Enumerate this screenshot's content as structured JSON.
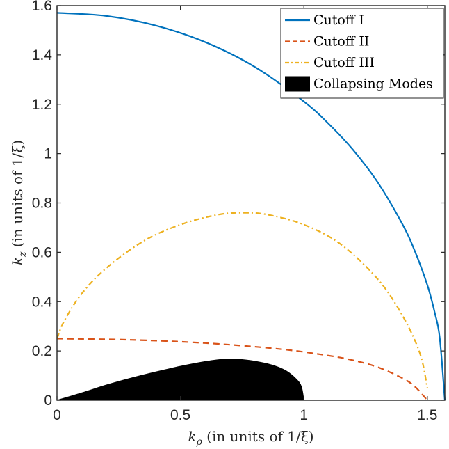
{
  "chart_data": {
    "type": "line",
    "xlabel_main": "k",
    "xlabel_sub": "ρ",
    "xlabel_rest": " (in units of 1/ξ)",
    "ylabel_main": "k",
    "ylabel_sub": "z",
    "ylabel_rest": " (in units of 1/ξ)",
    "xlim": [
      0,
      1.5708
    ],
    "ylim": [
      0,
      1.6
    ],
    "x_ticks": [
      {
        "value": 0,
        "label": "0"
      },
      {
        "value": 0.5,
        "label": "0.5"
      },
      {
        "value": 1,
        "label": "1"
      },
      {
        "value": 1.5,
        "label": "1.5"
      }
    ],
    "y_ticks": [
      {
        "value": 0,
        "label": "0"
      },
      {
        "value": 0.2,
        "label": "0.2"
      },
      {
        "value": 0.4,
        "label": "0.4"
      },
      {
        "value": 0.6,
        "label": "0.6"
      },
      {
        "value": 0.8,
        "label": "0.8"
      },
      {
        "value": 1,
        "label": "1"
      },
      {
        "value": 1.2,
        "label": "1.2"
      },
      {
        "value": 1.4,
        "label": "1.4"
      },
      {
        "value": 1.6,
        "label": "1.6"
      }
    ],
    "legend_position": "top-right",
    "series": [
      {
        "name": "Cutoff I",
        "style": "solid",
        "color": "#0072BD",
        "x": [
          0,
          0.2,
          0.4,
          0.6,
          0.8,
          1.0,
          1.1,
          1.2,
          1.3,
          1.4,
          1.45,
          1.5,
          1.53,
          1.55,
          1.5708
        ],
        "y": [
          1.5708,
          1.558,
          1.519,
          1.452,
          1.352,
          1.211,
          1.121,
          1.014,
          0.882,
          0.712,
          0.603,
          0.467,
          0.355,
          0.254,
          0
        ]
      },
      {
        "name": "Cutoff II",
        "style": "dashed",
        "color": "#D95319",
        "x": [
          0,
          0.3,
          0.6,
          0.9,
          1.1,
          1.2,
          1.3,
          1.4,
          1.45,
          1.5
        ],
        "y": [
          0.25,
          0.245,
          0.232,
          0.208,
          0.181,
          0.162,
          0.134,
          0.089,
          0.055,
          0
        ]
      },
      {
        "name": "Cutoff III",
        "style": "dashdot",
        "color": "#EDB120",
        "x": [
          0,
          0.03,
          0.1,
          0.2,
          0.35,
          0.5,
          0.65,
          0.75,
          0.85,
          1.0,
          1.15,
          1.3,
          1.4,
          1.47,
          1.5
        ],
        "y": [
          0.25,
          0.323,
          0.432,
          0.536,
          0.645,
          0.712,
          0.752,
          0.76,
          0.753,
          0.712,
          0.632,
          0.49,
          0.342,
          0.19,
          0.05
        ]
      },
      {
        "name": "Collapsing Modes",
        "style": "filled",
        "color": "#000000",
        "x": [
          0,
          0.1,
          0.2,
          0.3,
          0.4,
          0.5,
          0.6,
          0.68,
          0.75,
          0.82,
          0.88,
          0.93,
          0.97,
          0.99,
          1.0
        ],
        "y": [
          0,
          0.03,
          0.062,
          0.09,
          0.115,
          0.138,
          0.157,
          0.167,
          0.165,
          0.155,
          0.14,
          0.118,
          0.085,
          0.055,
          0
        ]
      }
    ]
  }
}
